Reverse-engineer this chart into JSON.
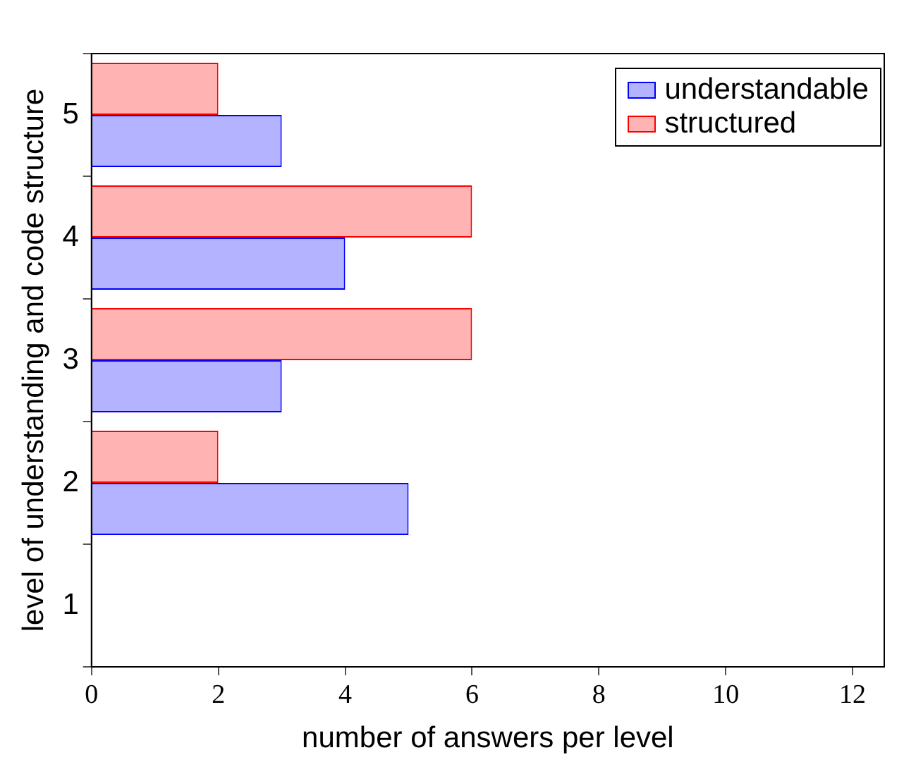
{
  "chart_data": {
    "type": "bar",
    "orientation": "horizontal",
    "xlabel": "number of answers per level",
    "ylabel": "level of understanding and code structure",
    "categories": [
      "5",
      "4",
      "3",
      "2",
      "1"
    ],
    "series": [
      {
        "name": "understandable",
        "color": "#b3b3ff",
        "values": [
          3,
          4,
          3,
          5,
          0
        ]
      },
      {
        "name": "structured",
        "color": "#ffb3b3",
        "values": [
          2,
          6,
          6,
          2,
          0
        ]
      }
    ],
    "xlim": [
      0,
      12.5
    ],
    "xticks": [
      0,
      2,
      4,
      6,
      8,
      10,
      12
    ],
    "grid": false,
    "legend": "top right"
  }
}
